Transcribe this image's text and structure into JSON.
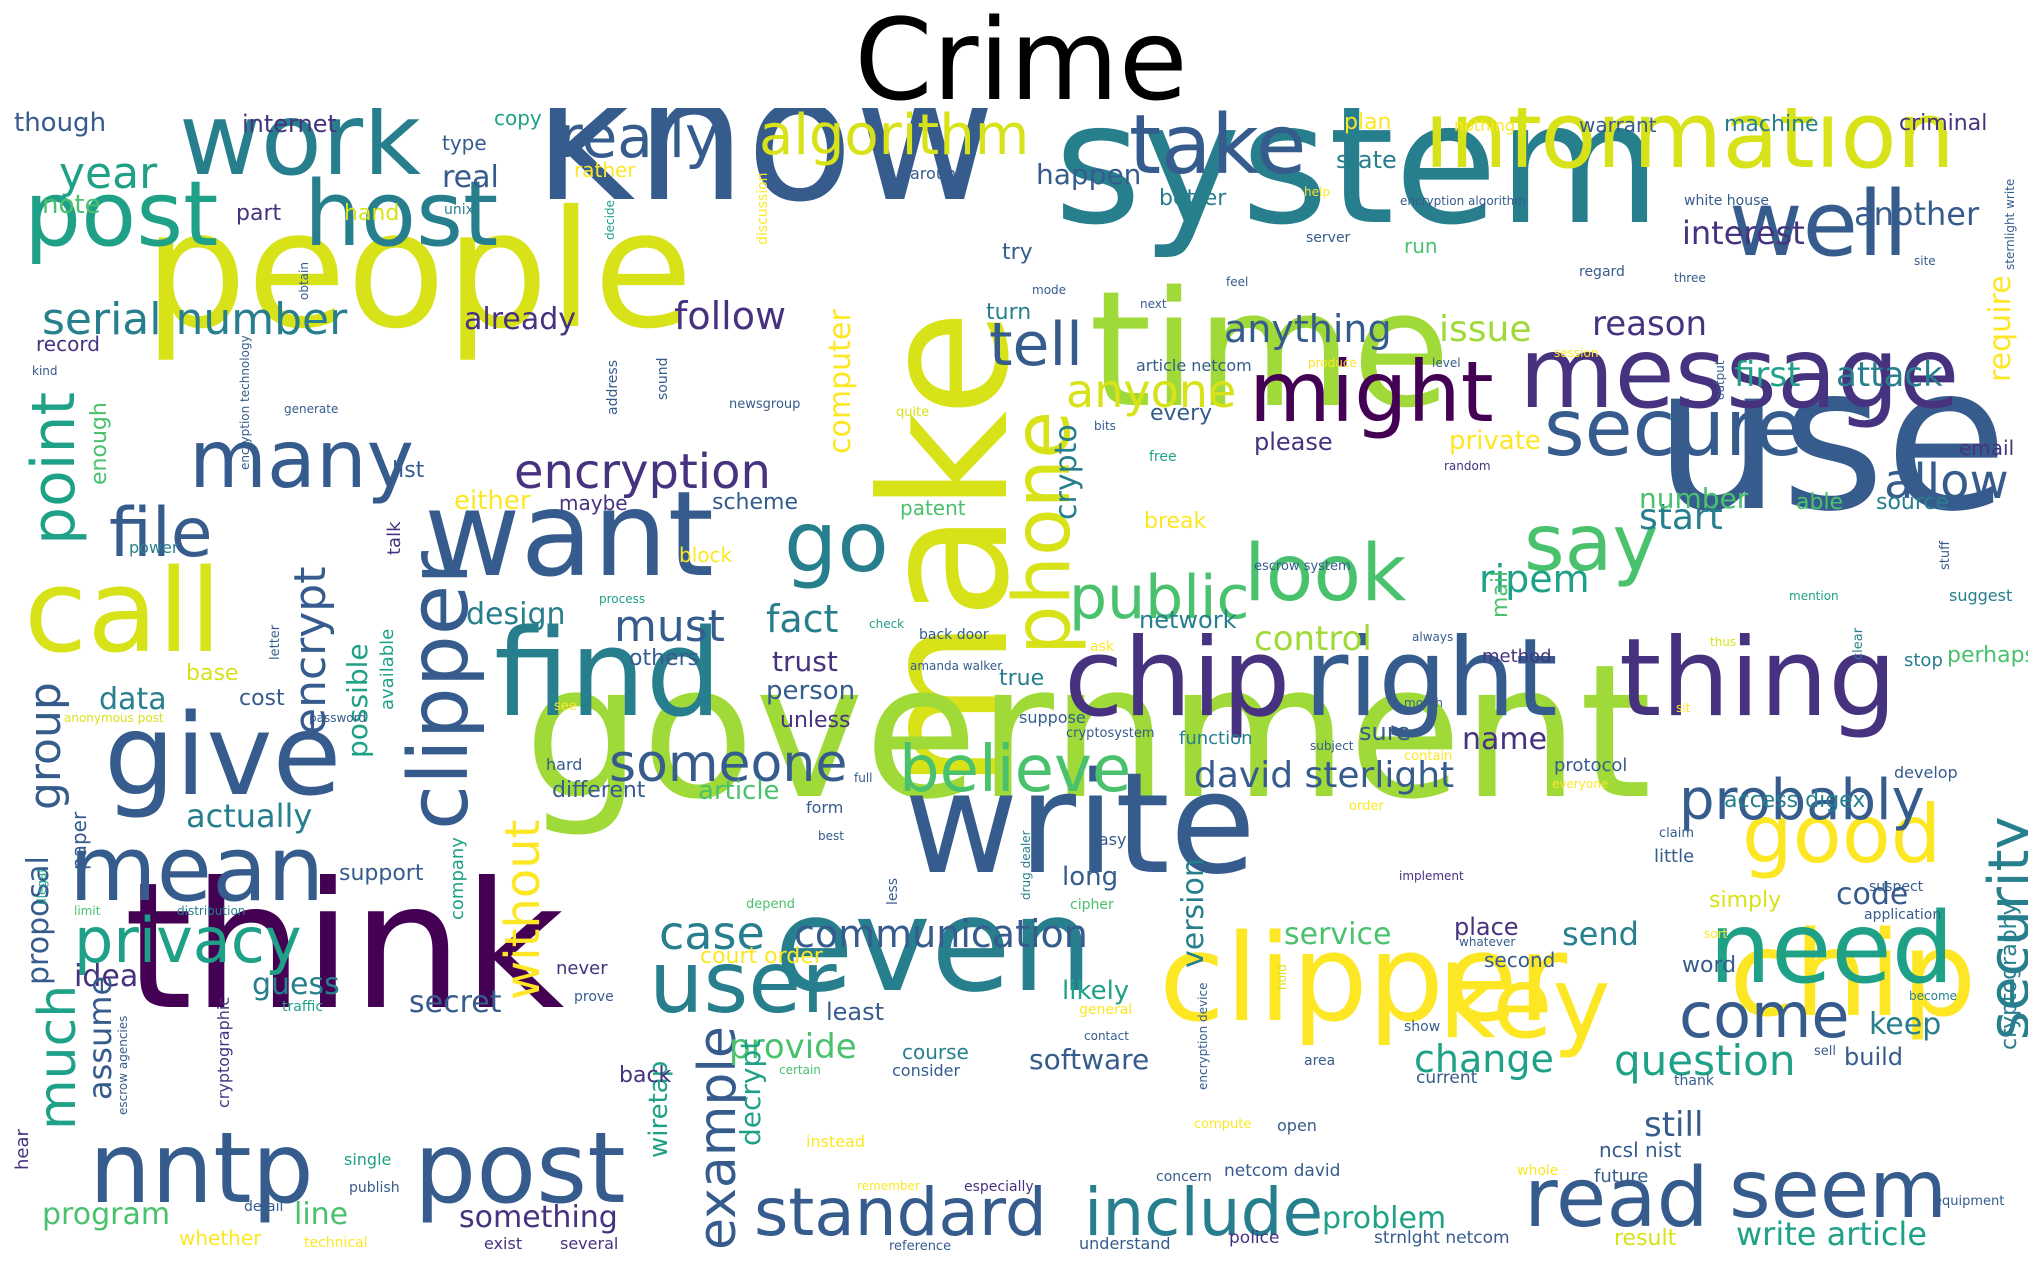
{
  "title": "Crime",
  "words": {
    "know": "know",
    "people": "people",
    "system": "system",
    "make": "make",
    "time": "time",
    "use": "use",
    "government": "government",
    "think": "think",
    "write": "write",
    "even": "even",
    "clipper": "clipper",
    "chip": "chip",
    "work": "work",
    "post": "post",
    "host": "host",
    "information": "information",
    "well": "well",
    "message": "message",
    "might": "might",
    "secure": "secure",
    "take": "take",
    "algorithm": "algorithm",
    "really": "really",
    "give": "give",
    "call": "call",
    "mean": "mean",
    "want": "want",
    "find": "find",
    "many": "many",
    "file": "file",
    "go": "go",
    "right": "right",
    "thing": "thing",
    "say": "say",
    "look": "look",
    "phone": "phone",
    "tell": "tell",
    "need": "need",
    "key": "key",
    "good": "good",
    "seem": "seem",
    "read": "read",
    "standard": "standard",
    "include": "include",
    "user": "user",
    "nntp": "nntp",
    "privacy": "privacy",
    "believe": "believe",
    "probably": "probably",
    "public": "public",
    "someone": "someone",
    "come": "come",
    "security": "security",
    "encryption": "encryption",
    "serial_number": "serial number",
    "point": "point",
    "year": "year",
    "anyone": "anyone",
    "anything": "anything",
    "example": "example",
    "without": "without",
    "case": "case",
    "communication": "communication",
    "must": "must",
    "fact": "fact",
    "encrypt": "encrypt",
    "group": "group",
    "much": "much",
    "question": "question",
    "change": "change",
    "allow": "allow",
    "start": "start",
    "follow": "follow",
    "already": "already",
    "actually": "actually",
    "data": "data",
    "design": "design",
    "ripem": "ripem",
    "david_sterlight": "david sterlight",
    "first": "first",
    "attack": "attack",
    "issue": "issue",
    "reason": "reason",
    "interest": "interest",
    "another": "another",
    "happen": "happen",
    "control": "control",
    "provide": "provide",
    "software": "software",
    "version": "version",
    "decrypt": "decrypt",
    "wiretap": "wiretap",
    "computer": "computer",
    "crypto": "crypto",
    "require": "require",
    "cryptography": "cryptography",
    "secret": "secret",
    "guess": "guess",
    "idea": "idea",
    "assume": "assume",
    "proposal": "proposal",
    "program": "program",
    "line": "line",
    "something": "something",
    "problem": "problem",
    "write_article": "write article",
    "though": "though",
    "internet": "internet",
    "copy": "copy",
    "type": "type",
    "real": "real",
    "note": "note",
    "part": "part",
    "hand": "hand",
    "unix": "unix",
    "record": "record",
    "enough": "enough",
    "list": "list",
    "either": "either",
    "maybe": "maybe",
    "scheme": "scheme",
    "patent": "patent",
    "block": "block",
    "possible": "possible",
    "available": "available",
    "talk": "talk",
    "power": "power",
    "letter": "letter",
    "process": "process",
    "base": "base",
    "cost": "cost",
    "paper": "paper",
    "others": "others",
    "trust": "trust",
    "person": "person",
    "unless": "unless",
    "true": "true",
    "network": "network",
    "mail": "mail",
    "name": "name",
    "sure": "sure",
    "article": "article",
    "different": "different",
    "access_digex": "access digex",
    "code": "code",
    "simply": "simply",
    "send": "send",
    "service": "service",
    "place": "place",
    "second": "second",
    "word": "word",
    "keep": "keep",
    "build": "build",
    "still": "still",
    "ncsl_nist": "ncsl nist",
    "future": "future",
    "result": "result",
    "strnlght_netcom": "strnlght netcom",
    "police": "police",
    "understand": "understand",
    "netcom_david": "netcom david",
    "court_order": "court order",
    "never": "never",
    "least": "least",
    "course": "course",
    "consider": "consider",
    "back": "back",
    "likely": "likely",
    "long": "long",
    "support": "support",
    "company": "company",
    "number": "number",
    "source": "source",
    "able": "able",
    "email": "email",
    "please": "please",
    "every": "every",
    "private": "private",
    "break": "break",
    "plan": "plan",
    "nothing": "nothing",
    "warrant": "warrant",
    "machine": "machine",
    "criminal": "criminal",
    "state": "state",
    "better": "better",
    "rather": "rather",
    "around": "around",
    "encryption_algorithm": "encryption algorithm",
    "white_house": "white house",
    "sternlight_write": "sternlight write",
    "try": "try",
    "run": "run",
    "server": "server",
    "regard": "regard",
    "three": "three",
    "site": "site",
    "turn": "turn",
    "next": "next",
    "feel": "feel",
    "help": "help",
    "decide": "decide",
    "obtain": "obtain",
    "encryption_technology": "encryption technology",
    "kind": "kind",
    "generate": "generate",
    "address": "address",
    "sound": "sound",
    "newsgroup": "newsgroup",
    "quite": "quite",
    "article_netcom": "article netcom",
    "produce": "produce",
    "level": "level",
    "session": "session",
    "output": "output",
    "bits": "bits",
    "free": "free",
    "random": "random",
    "mode": "mode",
    "discussion": "discussion",
    "escrow_system": "escrow system",
    "stuff": "stuff",
    "mention": "mention",
    "suggest": "suggest",
    "check": "check",
    "back_door": "back door",
    "amanda_walker": "amanda walker",
    "ask": "ask",
    "always": "always",
    "method": "method",
    "thus": "thus",
    "clear": "clear",
    "stop": "stop",
    "perhaps": "perhaps",
    "see": "see",
    "suppose": "suppose",
    "month": "month",
    "sit": "sit",
    "cryptosystem": "cryptosystem",
    "function": "function",
    "subject": "subject",
    "contain": "contain",
    "protocol": "protocol",
    "everyone": "everyone",
    "develop": "develop",
    "hard": "hard",
    "full": "full",
    "form": "form",
    "best": "best",
    "order": "order",
    "claim": "claim",
    "little": "little",
    "easy": "easy",
    "drug_dealer": "drug dealer",
    "cipher": "cipher",
    "implement": "implement",
    "suspect": "suspect",
    "application": "application",
    "less": "less",
    "depend": "depend",
    "limit": "limit",
    "distribution": "distribution",
    "illegal": "illegal",
    "anonymous_post": "anonymous post",
    "password": "password",
    "sort": "sort",
    "whatever": "whatever",
    "encryption_device": "encryption device",
    "hold": "hold",
    "prove": "prove",
    "general": "general",
    "contact": "contact",
    "become": "become",
    "traffic": "traffic",
    "cryptographic": "cryptographic",
    "escrow_agencies": "escrow agencies",
    "show": "show",
    "area": "area",
    "current": "current",
    "thank": "thank",
    "sell": "sell",
    "certain": "certain",
    "instead": "instead",
    "compute": "compute",
    "open": "open",
    "especially": "especially",
    "concern": "concern",
    "whole": "whole",
    "single": "single",
    "publish": "publish",
    "hear": "hear",
    "detail": "detail",
    "remember": "remember",
    "whether": "whether",
    "technical": "technical",
    "exist": "exist",
    "several": "several",
    "reference": "reference",
    "equipment": "equipment"
  },
  "palette": [
    "#440154",
    "#46327e",
    "#365c8d",
    "#277f8e",
    "#1fa187",
    "#4ac16d",
    "#a0da39",
    "#d8e219",
    "#fde725"
  ]
}
